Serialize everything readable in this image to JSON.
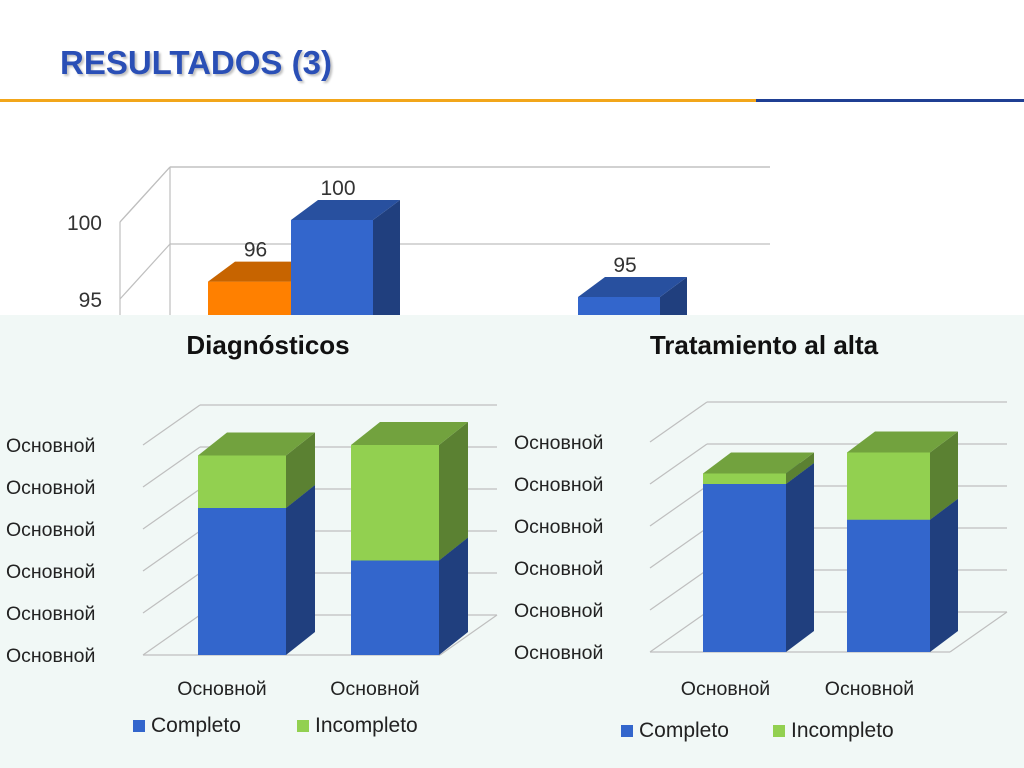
{
  "slide": {
    "title": "RESULTADOS (3)"
  },
  "colors": {
    "title": "#2a4fb6",
    "rule_orange": "#f2a61a",
    "rule_blue": "#1f3f93",
    "orange": "#ff8000",
    "blue": "#3366cc",
    "green": "#92d050",
    "panel": "#f1f8f6",
    "grid": "#bfbfbf"
  },
  "chart_data": [
    {
      "type": "bar",
      "partially_covered": true,
      "ylim": [
        93,
        103
      ],
      "yticks": [
        {
          "value": 95,
          "label": "95"
        },
        {
          "value": 100,
          "label": "100"
        }
      ],
      "series": [
        {
          "color": "orange",
          "values": [
            96,
            null
          ]
        },
        {
          "color": "blue",
          "values": [
            100,
            95
          ]
        }
      ],
      "data_labels": [
        [
          "96",
          ""
        ],
        [
          "100",
          "95"
        ]
      ]
    },
    {
      "type": "bar",
      "stacked": true,
      "title": "Diagnósticos",
      "ylim": [
        0,
        100
      ],
      "yticks": [
        {
          "value": 0,
          "label": "Основной"
        },
        {
          "value": 20,
          "label": "Основной"
        },
        {
          "value": 40,
          "label": "Основной"
        },
        {
          "value": 60,
          "label": "Основной"
        },
        {
          "value": 80,
          "label": "Основной"
        },
        {
          "value": 100,
          "label": "Основной"
        }
      ],
      "categories": [
        "Основной",
        "Основной"
      ],
      "series": [
        {
          "name": "Completo",
          "color": "blue",
          "values": [
            70,
            45
          ]
        },
        {
          "name": "Incompleto",
          "color": "green",
          "values": [
            25,
            55
          ]
        }
      ],
      "legend": "bottom"
    },
    {
      "type": "bar",
      "stacked": true,
      "title": "Tratamiento al alta",
      "ylim": [
        0,
        100
      ],
      "yticks": [
        {
          "value": 0,
          "label": "Основной"
        },
        {
          "value": 20,
          "label": "Основной"
        },
        {
          "value": 40,
          "label": "Основной"
        },
        {
          "value": 60,
          "label": "Основной"
        },
        {
          "value": 80,
          "label": "Основной"
        },
        {
          "value": 100,
          "label": "Основной"
        }
      ],
      "categories": [
        "Основной",
        "Основной"
      ],
      "series": [
        {
          "name": "Completo",
          "color": "blue",
          "values": [
            80,
            63
          ]
        },
        {
          "name": "Incompleto",
          "color": "green",
          "values": [
            5,
            32
          ]
        }
      ],
      "legend": "bottom"
    }
  ]
}
